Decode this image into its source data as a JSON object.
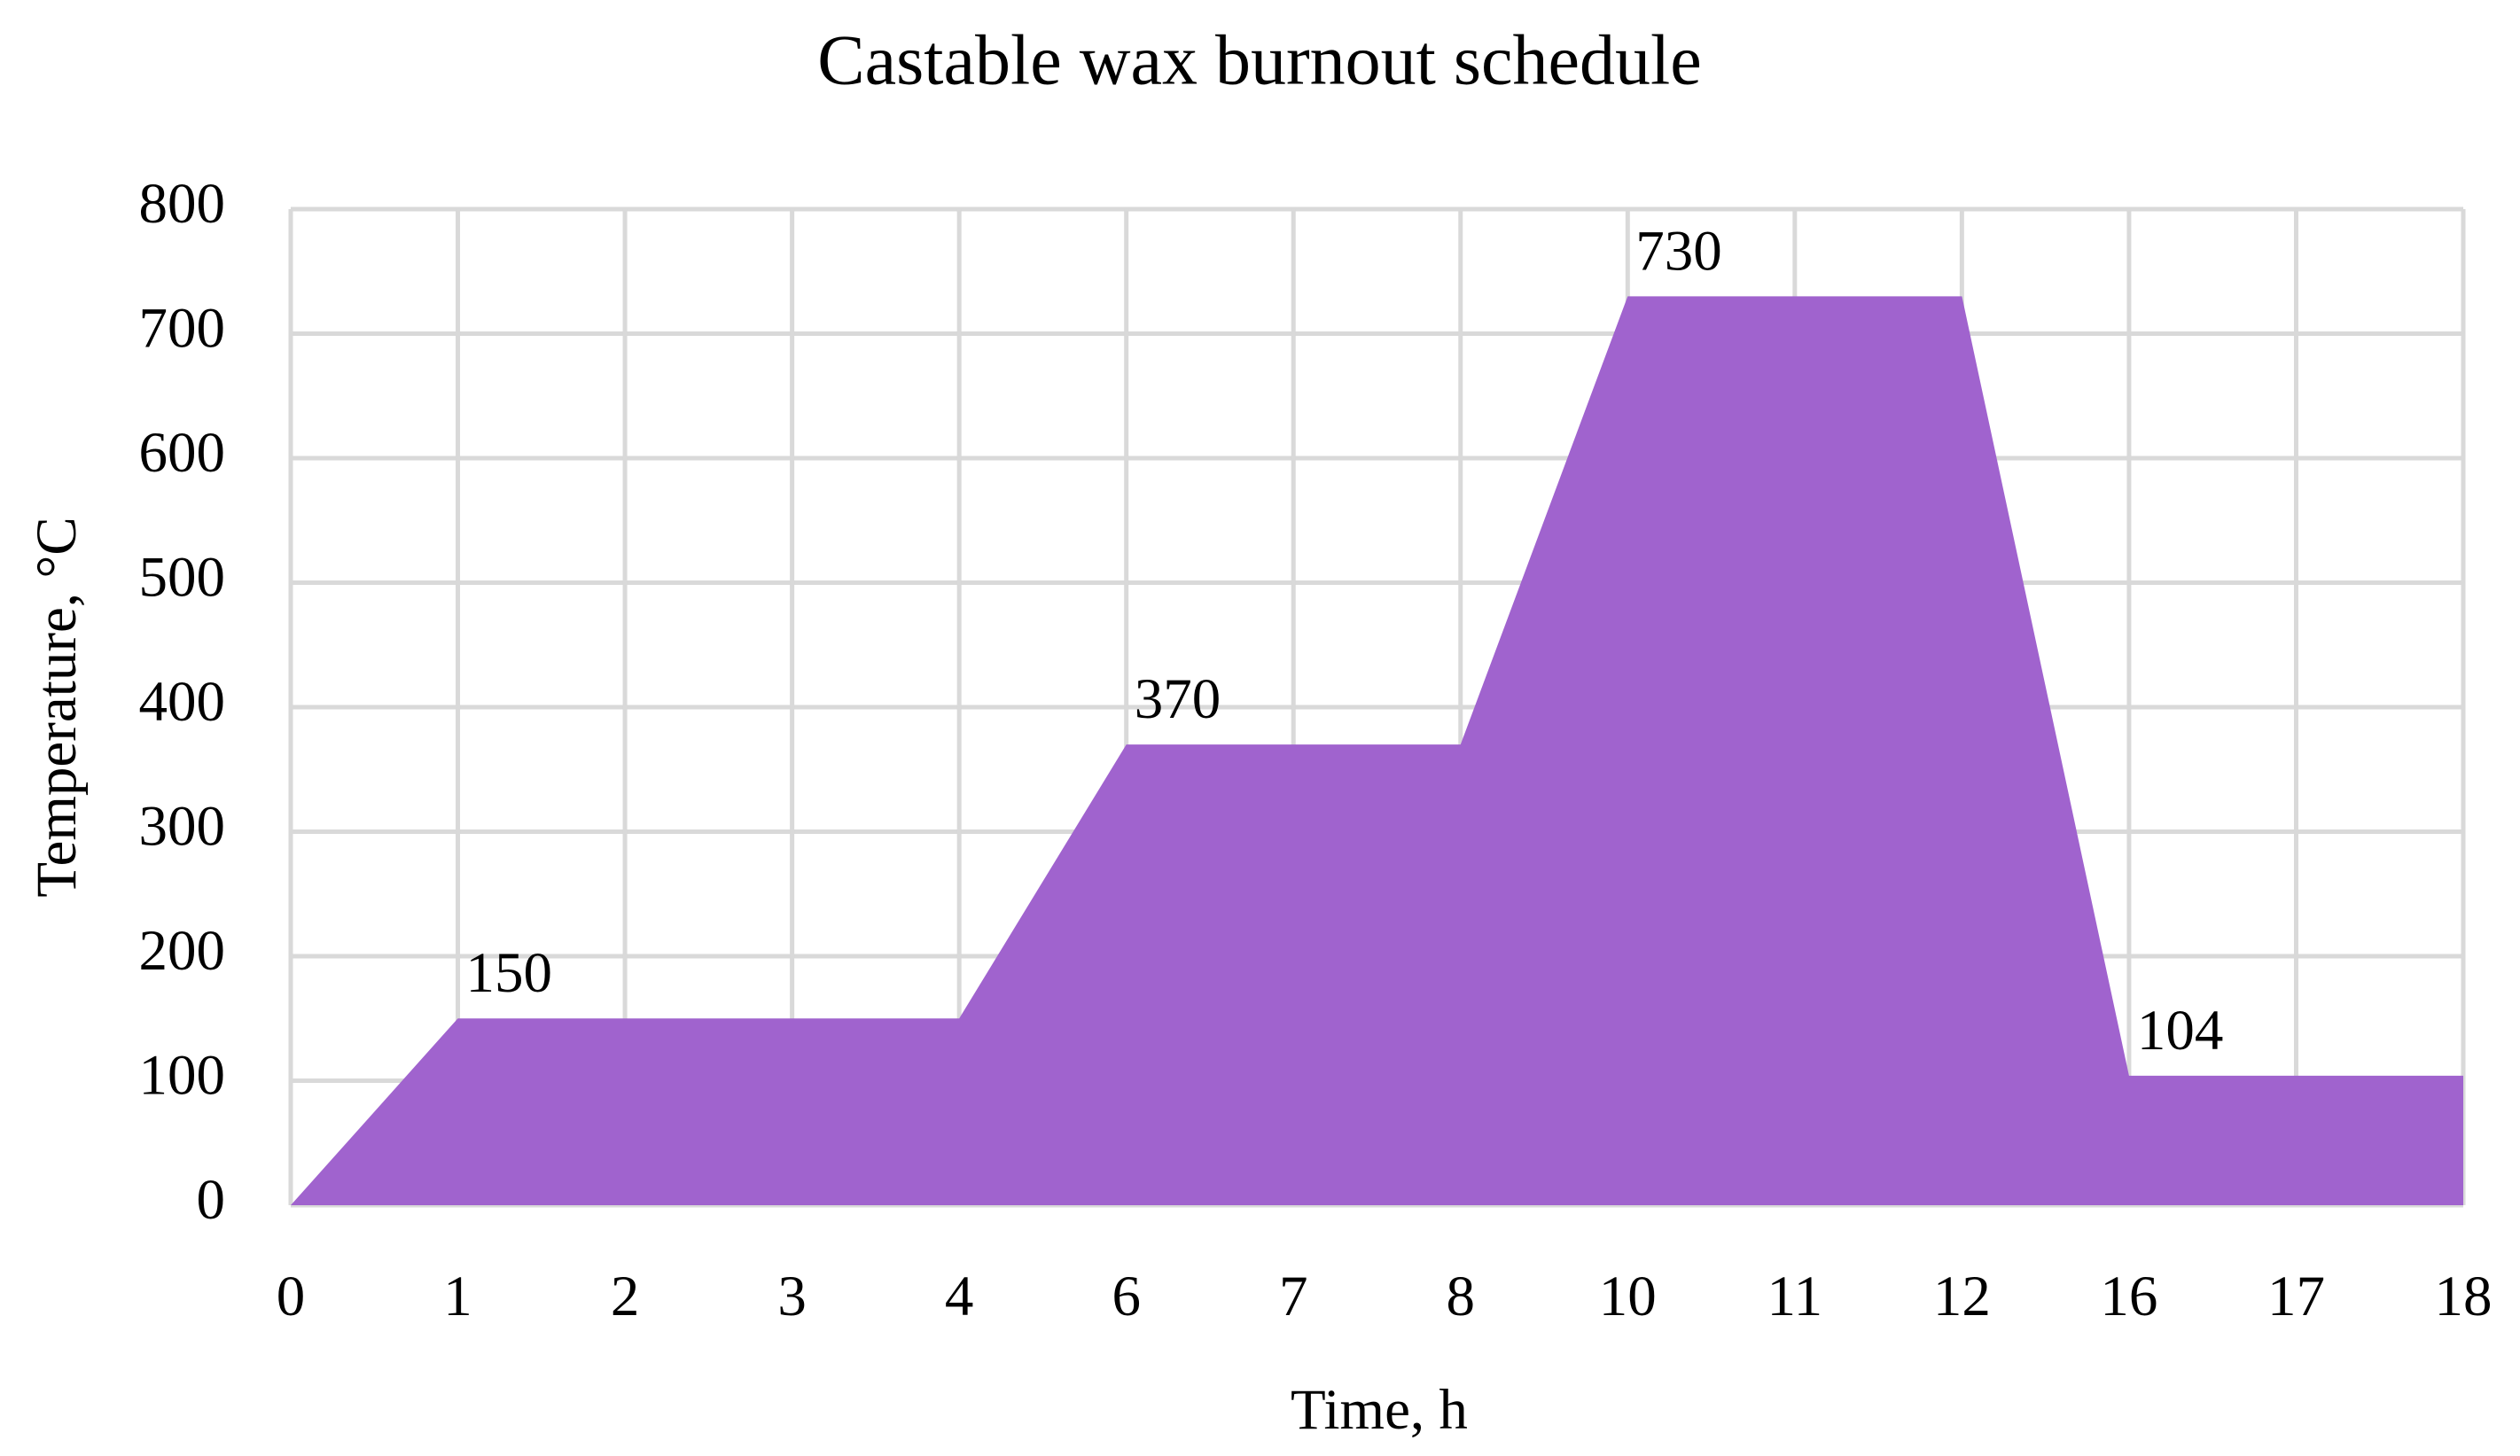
{
  "chart_data": {
    "type": "area",
    "title": "Castable wax burnout schedule",
    "x_label": "Time, h",
    "y_label": "Temperature, °C",
    "categories": [
      "0",
      "1",
      "2",
      "3",
      "4",
      "6",
      "7",
      "8",
      "10",
      "11",
      "12",
      "16",
      "17",
      "18"
    ],
    "values": [
      0,
      150,
      150,
      150,
      150,
      370,
      370,
      370,
      730,
      730,
      730,
      104,
      104,
      104
    ],
    "value_labels": [
      null,
      "150",
      null,
      null,
      null,
      "370",
      null,
      null,
      "730",
      null,
      null,
      "104",
      null,
      null
    ],
    "color": "#a063ce",
    "ylim": [
      0,
      800
    ],
    "yticks": [
      0,
      100,
      200,
      300,
      400,
      500,
      600,
      700,
      800
    ],
    "grid": true
  }
}
